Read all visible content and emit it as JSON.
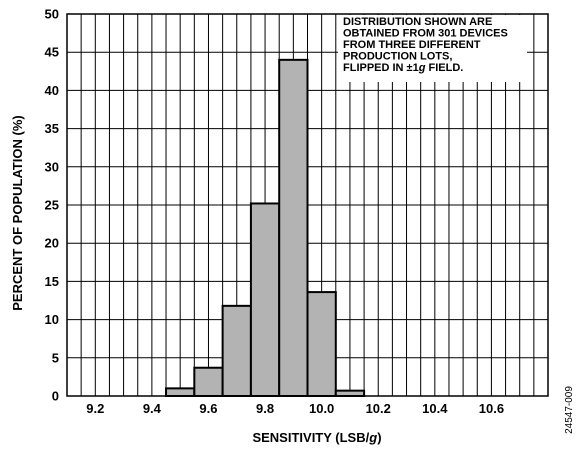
{
  "chart_data": {
    "type": "bar",
    "xlabel_prefix": "SENSITIVITY (LSB/",
    "xlabel_italic": "g",
    "xlabel_suffix": ")",
    "ylabel": "PERCENT OF POPULATION (%)",
    "xlim": [
      9.1,
      10.8
    ],
    "ylim": [
      0,
      50
    ],
    "x_ticks": [
      "9.2",
      "9.4",
      "9.6",
      "9.8",
      "10.0",
      "10.2",
      "10.4",
      "10.6"
    ],
    "y_ticks": [
      "0",
      "5",
      "10",
      "15",
      "20",
      "25",
      "30",
      "35",
      "40",
      "45",
      "50"
    ],
    "grid": true,
    "bin_width": 0.1,
    "bins": [
      {
        "start": 9.45,
        "value": 1.0
      },
      {
        "start": 9.55,
        "value": 3.7
      },
      {
        "start": 9.65,
        "value": 11.8
      },
      {
        "start": 9.75,
        "value": 25.2
      },
      {
        "start": 9.85,
        "value": 44.0
      },
      {
        "start": 9.95,
        "value": 13.6
      },
      {
        "start": 10.05,
        "value": 0.7
      }
    ],
    "bar_color": "#b3b3b3",
    "annotation": [
      "DISTRIBUTION SHOWN ARE",
      "OBTAINED FROM 301 DEVICES",
      "FROM THREE DIFFERENT",
      "PRODUCTION LOTS,"
    ],
    "annotation_last_prefix": "FLIPPED IN ±1",
    "annotation_last_italic": "g",
    "annotation_last_suffix": " FIELD."
  },
  "figure_id": "24547-009"
}
